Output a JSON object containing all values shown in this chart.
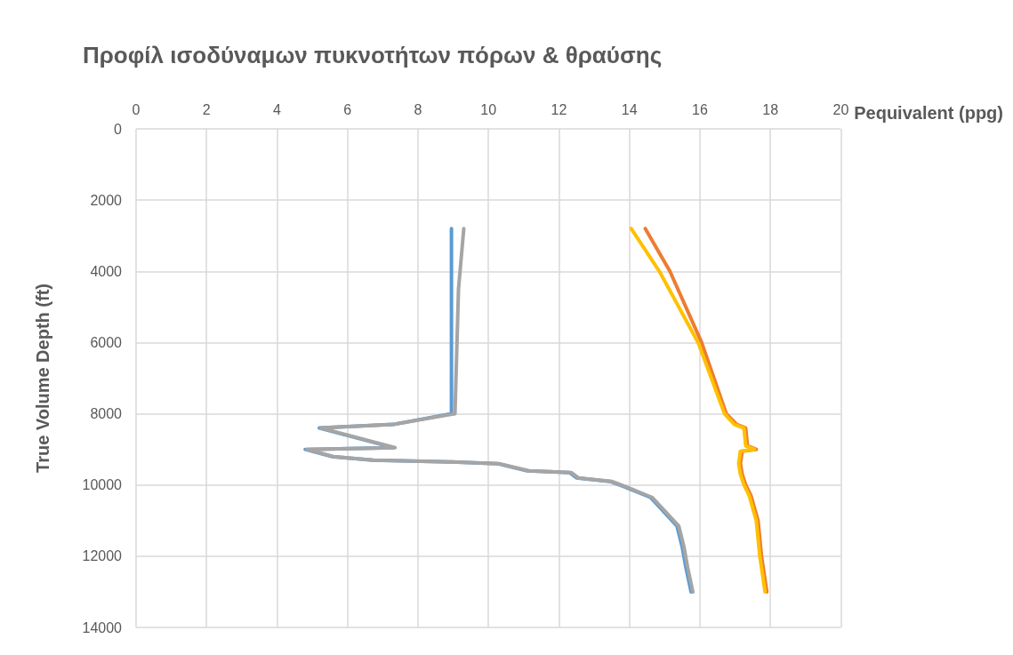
{
  "chart_data": {
    "type": "line",
    "title": "Προφίλ ισοδύναμων πυκνοτήτων πόρων & θραύσης",
    "xlabel": "Pequivalent (ppg)",
    "ylabel": "True Volume Depth (ft)",
    "xlim": [
      0,
      20
    ],
    "xticks": [
      0,
      2,
      4,
      6,
      8,
      10,
      12,
      14,
      16,
      18,
      20
    ],
    "ylim": [
      14000,
      0
    ],
    "yticks": [
      0,
      2000,
      4000,
      6000,
      8000,
      10000,
      12000,
      14000
    ],
    "grid": true,
    "marker": "none",
    "line_style": "solid",
    "series": [
      {
        "color": "#5b9bd5",
        "x": [
          8.95,
          8.95,
          8.95,
          7.3,
          5.2,
          7.3,
          4.8,
          5.55,
          6.7,
          8.9,
          10.25,
          11.1,
          12.3,
          12.5,
          13.45,
          13.85,
          14.6,
          15.35,
          15.4,
          15.5,
          15.6,
          15.75
        ],
        "values": [
          2800,
          6000,
          8000,
          8300,
          8400,
          8950,
          9000,
          9200,
          9300,
          9350,
          9400,
          9600,
          9650,
          9800,
          9900,
          10050,
          10350,
          11150,
          11350,
          11750,
          12300,
          13000
        ]
      },
      {
        "color": "#a5a5a5",
        "x": [
          9.3,
          9.15,
          9.05,
          7.3,
          5.25,
          7.35,
          4.85,
          5.6,
          6.75,
          8.95,
          10.3,
          11.15,
          12.35,
          12.55,
          13.5,
          13.9,
          14.65,
          15.4,
          15.45,
          15.55,
          15.65,
          15.8
        ],
        "values": [
          2800,
          4500,
          8000,
          8300,
          8400,
          8950,
          9000,
          9200,
          9300,
          9350,
          9400,
          9600,
          9650,
          9800,
          9900,
          10050,
          10350,
          11150,
          11350,
          11750,
          12300,
          13000
        ]
      },
      {
        "color": "#ed7d31",
        "x": [
          14.45,
          15.15,
          16.05,
          16.75,
          17.05,
          17.3,
          17.35,
          17.6,
          17.2,
          17.15,
          17.2,
          17.3,
          17.45,
          17.65,
          17.75,
          17.9
        ],
        "values": [
          2800,
          4000,
          6000,
          8000,
          8300,
          8400,
          8900,
          9000,
          9050,
          9400,
          9700,
          10000,
          10300,
          11000,
          12000,
          13000
        ]
      },
      {
        "color": "#ffc000",
        "x": [
          14.05,
          14.85,
          15.95,
          16.7,
          16.98,
          17.25,
          17.3,
          17.55,
          17.15,
          17.1,
          17.15,
          17.25,
          17.4,
          17.6,
          17.7,
          17.85
        ],
        "values": [
          2800,
          4000,
          6000,
          8000,
          8300,
          8400,
          8900,
          9000,
          9050,
          9400,
          9700,
          10000,
          10300,
          11000,
          12000,
          13000
        ]
      }
    ]
  }
}
